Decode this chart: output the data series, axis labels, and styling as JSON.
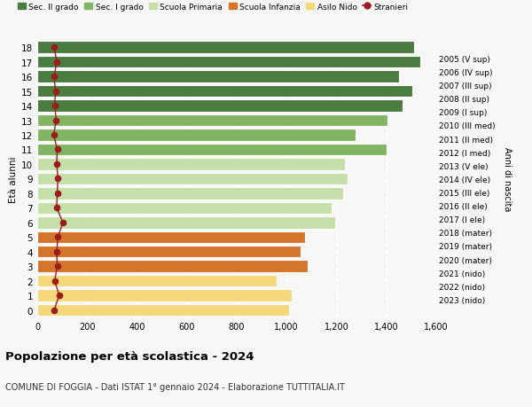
{
  "ages": [
    18,
    17,
    16,
    15,
    14,
    13,
    12,
    11,
    10,
    9,
    8,
    7,
    6,
    5,
    4,
    3,
    2,
    1,
    0
  ],
  "years": [
    "2005 (V sup)",
    "2006 (IV sup)",
    "2007 (III sup)",
    "2008 (II sup)",
    "2009 (I sup)",
    "2010 (III med)",
    "2011 (II med)",
    "2012 (I med)",
    "2013 (V ele)",
    "2014 (IV ele)",
    "2015 (III ele)",
    "2016 (II ele)",
    "2017 (I ele)",
    "2018 (mater)",
    "2019 (mater)",
    "2020 (mater)",
    "2021 (nido)",
    "2022 (nido)",
    "2023 (nido)"
  ],
  "values": [
    1510,
    1535,
    1450,
    1505,
    1465,
    1405,
    1275,
    1400,
    1235,
    1245,
    1225,
    1180,
    1195,
    1075,
    1055,
    1085,
    960,
    1020,
    1010
  ],
  "stranieri": [
    68,
    78,
    68,
    73,
    70,
    76,
    66,
    80,
    78,
    83,
    80,
    78,
    103,
    83,
    78,
    80,
    70,
    88,
    68
  ],
  "colors": {
    "sec2": "#4a7c40",
    "sec1": "#82b563",
    "primaria": "#c5dfa8",
    "infanzia": "#d4752a",
    "nido": "#f5d87a",
    "stranieri": "#9b1c1c"
  },
  "school_types": {
    "sec2": [
      18,
      17,
      16,
      15,
      14
    ],
    "sec1": [
      13,
      12,
      11
    ],
    "primaria": [
      10,
      9,
      8,
      7,
      6
    ],
    "infanzia": [
      5,
      4,
      3
    ],
    "nido": [
      2,
      1,
      0
    ]
  },
  "legend": [
    {
      "label": "Sec. II grado",
      "color": "#4a7c40"
    },
    {
      "label": "Sec. I grado",
      "color": "#82b563"
    },
    {
      "label": "Scuola Primaria",
      "color": "#c5dfa8"
    },
    {
      "label": "Scuola Infanzia",
      "color": "#d4752a"
    },
    {
      "label": "Asilo Nido",
      "color": "#f5d87a"
    },
    {
      "label": "Stranieri",
      "color": "#9b1c1c"
    }
  ],
  "title": "Popolazione per età scolastica - 2024",
  "subtitle": "COMUNE DI FOGGIA - Dati ISTAT 1° gennaio 2024 - Elaborazione TUTTITALIA.IT",
  "ylabel_left": "Età alunni",
  "ylabel_right": "Anni di nascita",
  "bg_color": "#f7f7f7",
  "bar_height": 0.82
}
